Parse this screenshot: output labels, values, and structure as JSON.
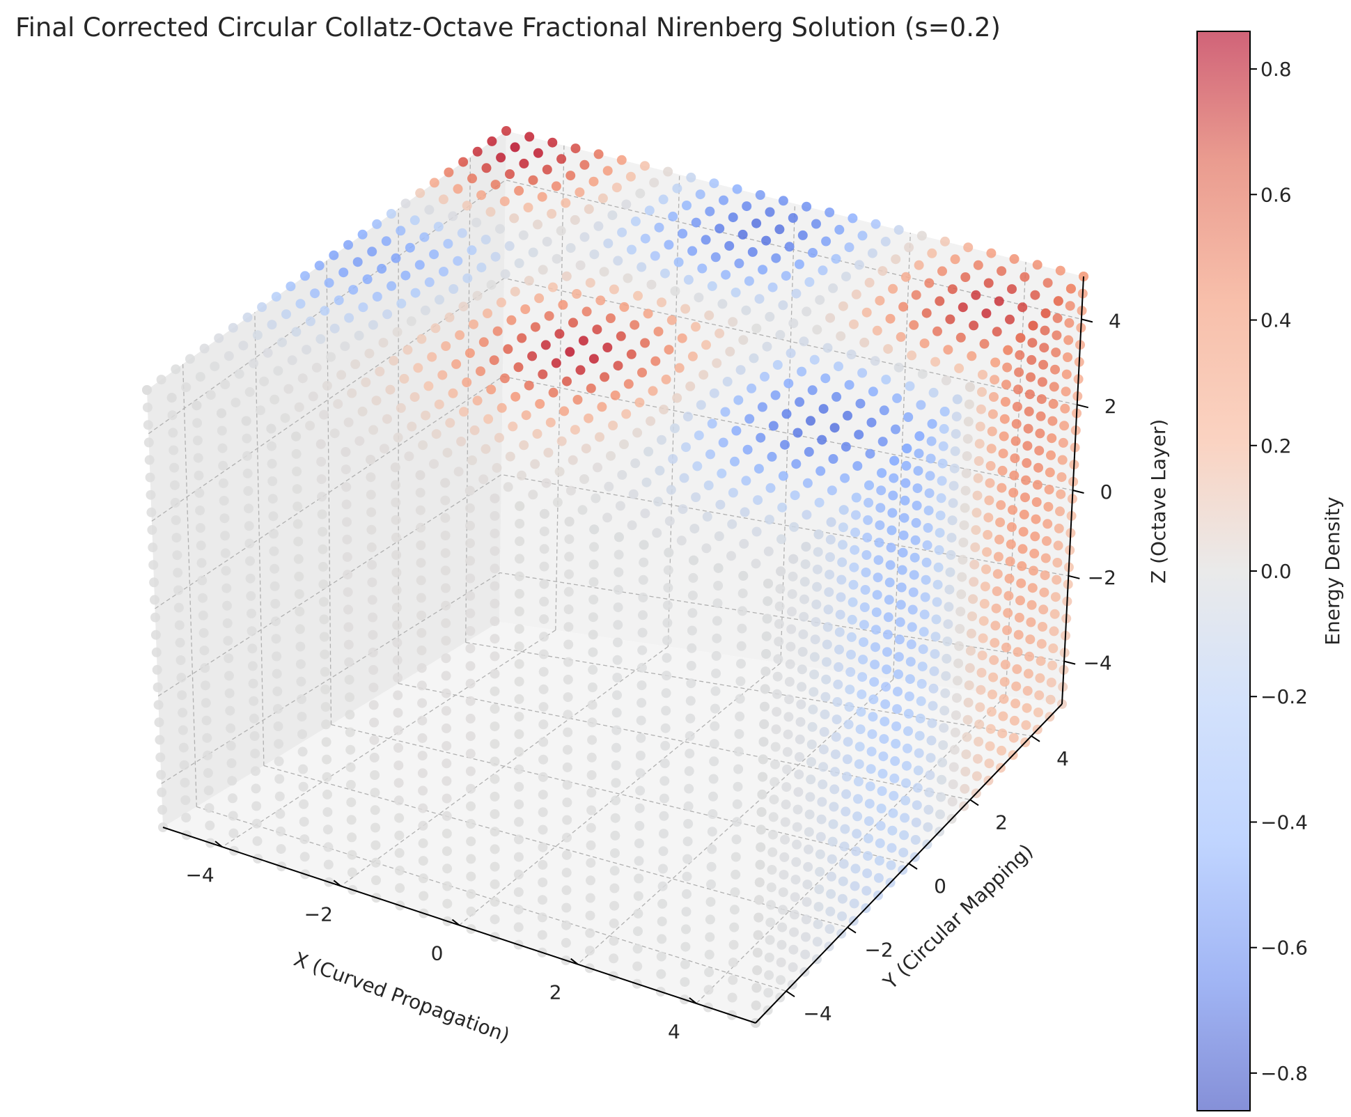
{
  "chart_data": {
    "type": "scatter",
    "subtype": "3d-voxel-scatter",
    "title": "Final Corrected Circular Collatz-Octave Fractional Nirenberg Solution (s=0.2)",
    "xlabel": "X (Curved Propagation)",
    "ylabel": "Y (Circular Mapping)",
    "zlabel": "Z (Octave Layer)",
    "xlim": [
      -5,
      5
    ],
    "ylim": [
      -5,
      5
    ],
    "zlim": [
      -5,
      5
    ],
    "x_ticks": [
      -4,
      -2,
      0,
      2,
      4
    ],
    "y_ticks": [
      -4,
      -2,
      0,
      2,
      4
    ],
    "z_ticks": [
      -4,
      -2,
      0,
      2,
      4
    ],
    "x_tick_labels": [
      "−4",
      "−2",
      "0",
      "2",
      "4"
    ],
    "y_tick_labels": [
      "−4",
      "−2",
      "0",
      "2",
      "4"
    ],
    "z_tick_labels": [
      "−4",
      "−2",
      "0",
      "2",
      "4"
    ],
    "grid": true,
    "colormap": "coolwarm",
    "colorbar": {
      "label": "Energy Density",
      "range": [
        -0.86,
        0.86
      ],
      "ticks": [
        0.8,
        0.6,
        0.4,
        0.2,
        0.0,
        -0.2,
        -0.4,
        -0.6,
        -0.8
      ],
      "tick_labels": [
        "0.8",
        "0.6",
        "0.4",
        "0.2",
        "0.0",
        "−0.2",
        "−0.4",
        "−0.6",
        "−0.8"
      ],
      "placement": "right"
    },
    "field": {
      "description_of_values": "energy density on a regular 3D grid",
      "grid_range": [
        -5,
        5
      ],
      "top_face_extremes": [
        {
          "x": -4.5,
          "y": 4.5,
          "value": 0.85
        },
        {
          "x": -4.5,
          "y": 0.5,
          "value": -0.55
        },
        {
          "x": 0.0,
          "y": 4.0,
          "value": -0.75
        },
        {
          "x": -0.5,
          "y": -0.5,
          "value": 0.85
        },
        {
          "x": 4.0,
          "y": 3.5,
          "value": 0.8
        },
        {
          "x": 3.5,
          "y": -0.5,
          "value": -0.75
        }
      ]
    }
  },
  "colors": {
    "background": "#ffffff",
    "pane_left": "#ebebeb",
    "pane_right": "#f2f2f2",
    "pane_floor": "#f5f5f5",
    "text": "#262626"
  }
}
